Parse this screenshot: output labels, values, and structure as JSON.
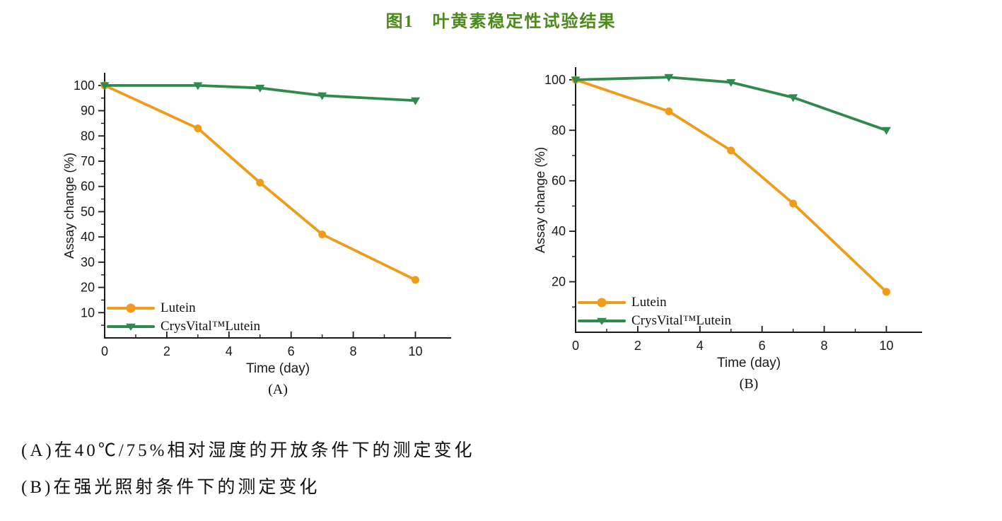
{
  "title": {
    "text": "图1　叶黄素稳定性试验结果",
    "color": "#4c8a1d"
  },
  "captions": [
    "(A)在40℃/75%相对湿度的开放条件下的测定变化",
    "(B)在强光照射条件下的测定变化"
  ],
  "colors": {
    "axis": "#1a1a1a",
    "lutein_orange": "#F09C1A",
    "crysvital_green": "#2F8B4C"
  },
  "chart_data": [
    {
      "type": "line",
      "panel_label": "(A)",
      "xlabel": "Time (day)",
      "ylabel": "Assay change (%)",
      "x": [
        0,
        3,
        5,
        7,
        10
      ],
      "series": [
        {
          "name": "Lutein",
          "marker": "circle",
          "color": "#F09C1A",
          "values": [
            100,
            83,
            61.5,
            41,
            23
          ]
        },
        {
          "name": "CrysVital™Lutein",
          "marker": "triangle-down",
          "color": "#2F8B4C",
          "values": [
            100,
            100,
            99,
            96,
            94
          ]
        }
      ],
      "xlim": [
        0,
        11.15
      ],
      "ylim": [
        0,
        105
      ],
      "xticks": [
        0,
        2,
        4,
        6,
        8,
        10
      ],
      "xminor": [
        1,
        3,
        5,
        7,
        9
      ],
      "yticks": [
        10,
        20,
        30,
        40,
        50,
        60,
        70,
        80,
        90,
        100
      ],
      "yminor": [
        5,
        15,
        25,
        35,
        45,
        55,
        65,
        75,
        85,
        95
      ],
      "legend_position": "lower-left",
      "grid": false
    },
    {
      "type": "line",
      "panel_label": "(B)",
      "xlabel": "Time (day)",
      "ylabel": "Assay change (%)",
      "x": [
        0,
        3,
        5,
        7,
        10
      ],
      "series": [
        {
          "name": "Lutein",
          "marker": "circle",
          "color": "#F09C1A",
          "values": [
            100,
            87.5,
            72,
            51,
            16
          ]
        },
        {
          "name": "CrysVital™Lutein",
          "marker": "triangle-down",
          "color": "#2F8B4C",
          "values": [
            100,
            101,
            99,
            93,
            80
          ]
        }
      ],
      "xlim": [
        0,
        11.15
      ],
      "ylim": [
        0,
        105
      ],
      "xticks": [
        0,
        2,
        4,
        6,
        8,
        10
      ],
      "xminor": [
        1,
        3,
        5,
        7,
        9
      ],
      "yticks": [
        20,
        40,
        60,
        80,
        100
      ],
      "yminor": [
        10,
        30,
        50,
        70,
        90
      ],
      "legend_position": "lower-left",
      "grid": false
    }
  ]
}
